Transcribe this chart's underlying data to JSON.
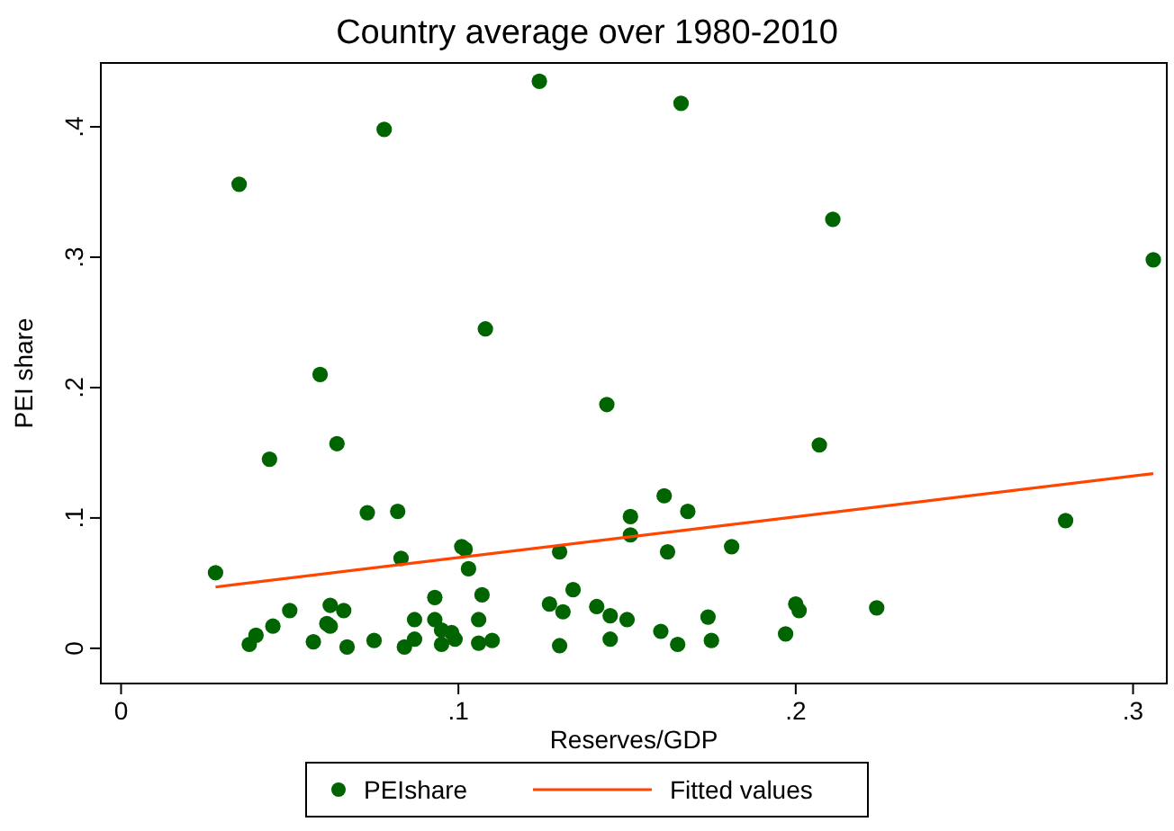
{
  "chart_data": {
    "type": "scatter",
    "title": "Country average over 1980-2010",
    "xlabel": "Reserves/GDP",
    "ylabel": "PEI share",
    "xlim": [
      -0.006,
      0.31
    ],
    "ylim": [
      -0.027,
      0.449
    ],
    "xticks": [
      {
        "value": 0,
        "label": "0"
      },
      {
        "value": 0.1,
        "label": ".1"
      },
      {
        "value": 0.2,
        "label": ".2"
      },
      {
        "value": 0.3,
        "label": ".3"
      }
    ],
    "yticks": [
      {
        "value": 0,
        "label": "0"
      },
      {
        "value": 0.1,
        "label": ".1"
      },
      {
        "value": 0.2,
        "label": ".2"
      },
      {
        "value": 0.3,
        "label": ".3"
      },
      {
        "value": 0.4,
        "label": ".4"
      }
    ],
    "grid": false,
    "legend": "bottom",
    "marker": "circle",
    "series": [
      {
        "name": "PEIshare",
        "color": "#006400",
        "x": [
          0.035,
          0.078,
          0.124,
          0.059,
          0.108,
          0.166,
          0.211,
          0.306,
          0.144,
          0.28,
          0.207,
          0.044,
          0.064,
          0.073,
          0.082,
          0.083,
          0.101,
          0.102,
          0.103,
          0.028,
          0.05,
          0.045,
          0.04,
          0.038,
          0.062,
          0.066,
          0.061,
          0.062,
          0.057,
          0.067,
          0.075,
          0.084,
          0.087,
          0.087,
          0.093,
          0.093,
          0.095,
          0.098,
          0.099,
          0.095,
          0.106,
          0.107,
          0.106,
          0.11,
          0.13,
          0.127,
          0.131,
          0.134,
          0.13,
          0.141,
          0.145,
          0.15,
          0.145,
          0.151,
          0.151,
          0.161,
          0.168,
          0.162,
          0.181,
          0.16,
          0.165,
          0.174,
          0.175,
          0.197,
          0.2,
          0.201,
          0.224
        ],
        "values": [
          0.356,
          0.398,
          0.435,
          0.21,
          0.245,
          0.418,
          0.329,
          0.298,
          0.187,
          0.098,
          0.156,
          0.145,
          0.157,
          0.104,
          0.105,
          0.069,
          0.078,
          0.076,
          0.061,
          0.058,
          0.029,
          0.017,
          0.01,
          0.003,
          0.033,
          0.029,
          0.019,
          0.017,
          0.005,
          0.001,
          0.006,
          0.001,
          0.007,
          0.022,
          0.039,
          0.022,
          0.014,
          0.012,
          0.007,
          0.003,
          0.022,
          0.041,
          0.004,
          0.006,
          0.074,
          0.034,
          0.028,
          0.045,
          0.002,
          0.032,
          0.025,
          0.022,
          0.007,
          0.101,
          0.087,
          0.117,
          0.105,
          0.074,
          0.078,
          0.013,
          0.003,
          0.024,
          0.006,
          0.011,
          0.034,
          0.029,
          0.031
        ]
      },
      {
        "name": "Fitted values",
        "type": "line",
        "color": "#ff4500",
        "line_style": "solid",
        "marker": "none",
        "x": [
          0.028,
          0.306
        ],
        "values": [
          0.047,
          0.134
        ]
      }
    ]
  }
}
